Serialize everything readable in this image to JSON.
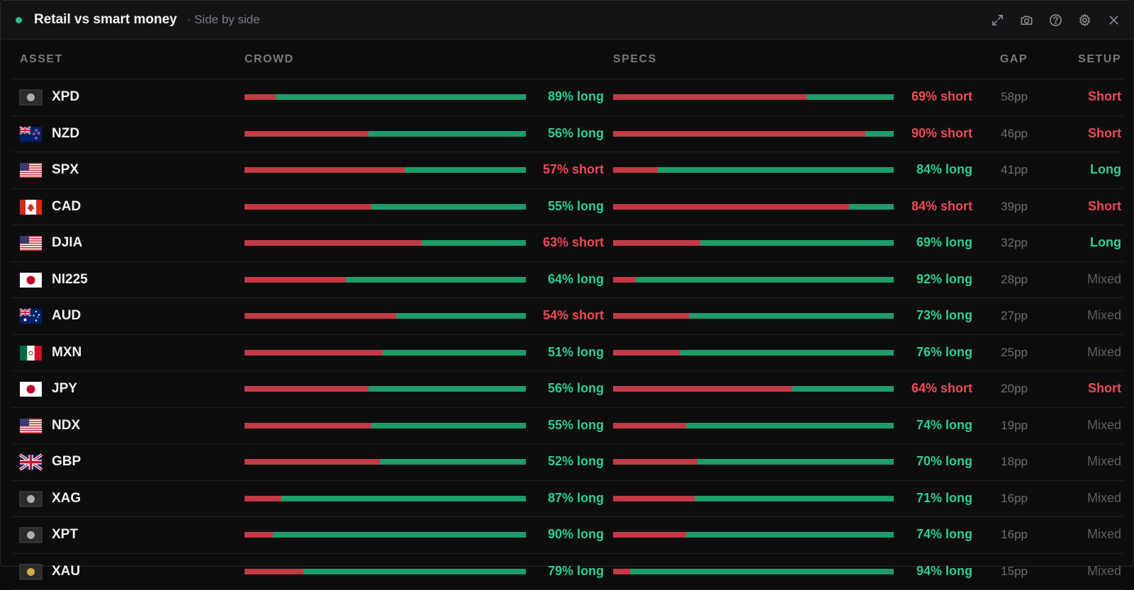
{
  "header": {
    "title": "Retail vs smart money",
    "subtitle": "· Side by side",
    "accent_color": "#28c08a",
    "tools": [
      "expand-icon",
      "camera-icon",
      "help-icon",
      "settings-icon",
      "close-icon"
    ]
  },
  "columns": {
    "asset": "ASSET",
    "crowd": "CROWD",
    "specs": "SPECS",
    "gap": "GAP",
    "setup": "SETUP"
  },
  "colors": {
    "long": "#2fd08f",
    "short": "#ef4a5a",
    "bar_long": "#1f9c6b",
    "bar_short": "#c23a45"
  },
  "rows": [
    {
      "flag": "metal-silver",
      "asset": "XPD",
      "crowd_short_pct": 11,
      "crowd_label": "89% long",
      "crowd_dir": "long",
      "specs_short_pct": 69,
      "specs_label": "69% short",
      "specs_dir": "short",
      "gap": "58pp",
      "setup": "Short"
    },
    {
      "flag": "nz",
      "asset": "NZD",
      "crowd_short_pct": 44,
      "crowd_label": "56% long",
      "crowd_dir": "long",
      "specs_short_pct": 90,
      "specs_label": "90% short",
      "specs_dir": "short",
      "gap": "46pp",
      "setup": "Short"
    },
    {
      "flag": "us",
      "asset": "SPX",
      "crowd_short_pct": 57,
      "crowd_label": "57% short",
      "crowd_dir": "short",
      "specs_short_pct": 16,
      "specs_label": "84% long",
      "specs_dir": "long",
      "gap": "41pp",
      "setup": "Long"
    },
    {
      "flag": "ca",
      "asset": "CAD",
      "crowd_short_pct": 45,
      "crowd_label": "55% long",
      "crowd_dir": "long",
      "specs_short_pct": 84,
      "specs_label": "84% short",
      "specs_dir": "short",
      "gap": "39pp",
      "setup": "Short"
    },
    {
      "flag": "us",
      "asset": "DJIA",
      "crowd_short_pct": 63,
      "crowd_label": "63% short",
      "crowd_dir": "short",
      "specs_short_pct": 31,
      "specs_label": "69% long",
      "specs_dir": "long",
      "gap": "32pp",
      "setup": "Long"
    },
    {
      "flag": "jp",
      "asset": "NI225",
      "crowd_short_pct": 36,
      "crowd_label": "64% long",
      "crowd_dir": "long",
      "specs_short_pct": 8,
      "specs_label": "92% long",
      "specs_dir": "long",
      "gap": "28pp",
      "setup": "Mixed"
    },
    {
      "flag": "au",
      "asset": "AUD",
      "crowd_short_pct": 54,
      "crowd_label": "54% short",
      "crowd_dir": "short",
      "specs_short_pct": 27,
      "specs_label": "73% long",
      "specs_dir": "long",
      "gap": "27pp",
      "setup": "Mixed"
    },
    {
      "flag": "mx",
      "asset": "MXN",
      "crowd_short_pct": 49,
      "crowd_label": "51% long",
      "crowd_dir": "long",
      "specs_short_pct": 24,
      "specs_label": "76% long",
      "specs_dir": "long",
      "gap": "25pp",
      "setup": "Mixed"
    },
    {
      "flag": "jp",
      "asset": "JPY",
      "crowd_short_pct": 44,
      "crowd_label": "56% long",
      "crowd_dir": "long",
      "specs_short_pct": 64,
      "specs_label": "64% short",
      "specs_dir": "short",
      "gap": "20pp",
      "setup": "Short"
    },
    {
      "flag": "us",
      "asset": "NDX",
      "crowd_short_pct": 45,
      "crowd_label": "55% long",
      "crowd_dir": "long",
      "specs_short_pct": 26,
      "specs_label": "74% long",
      "specs_dir": "long",
      "gap": "19pp",
      "setup": "Mixed"
    },
    {
      "flag": "gb",
      "asset": "GBP",
      "crowd_short_pct": 48,
      "crowd_label": "52% long",
      "crowd_dir": "long",
      "specs_short_pct": 30,
      "specs_label": "70% long",
      "specs_dir": "long",
      "gap": "18pp",
      "setup": "Mixed"
    },
    {
      "flag": "metal-silver",
      "asset": "XAG",
      "crowd_short_pct": 13,
      "crowd_label": "87% long",
      "crowd_dir": "long",
      "specs_short_pct": 29,
      "specs_label": "71% long",
      "specs_dir": "long",
      "gap": "16pp",
      "setup": "Mixed"
    },
    {
      "flag": "metal-silver",
      "asset": "XPT",
      "crowd_short_pct": 10,
      "crowd_label": "90% long",
      "crowd_dir": "long",
      "specs_short_pct": 26,
      "specs_label": "74% long",
      "specs_dir": "long",
      "gap": "16pp",
      "setup": "Mixed"
    },
    {
      "flag": "metal-gold",
      "asset": "XAU",
      "crowd_short_pct": 21,
      "crowd_label": "79% long",
      "crowd_dir": "long",
      "specs_short_pct": 6,
      "specs_label": "94% long",
      "specs_dir": "long",
      "gap": "15pp",
      "setup": "Mixed"
    }
  ]
}
